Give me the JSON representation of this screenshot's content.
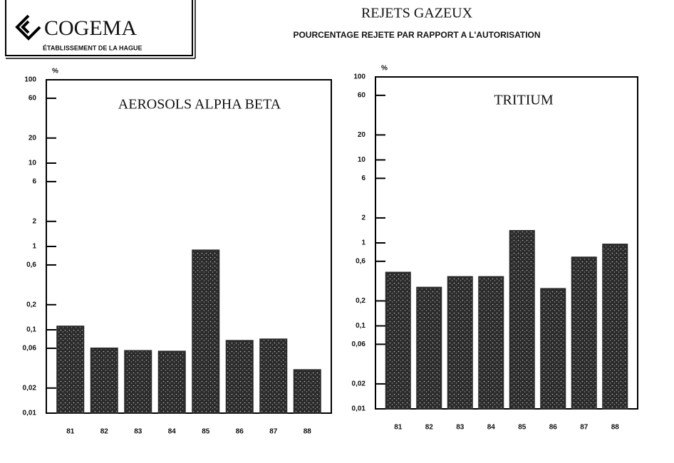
{
  "header": {
    "logo": "COGEMA",
    "establishment": "ÉTABLISSEMENT DE LA HAGUE",
    "title": "REJETS GAZEUX",
    "subtitle": "POURCENTAGE REJETE PAR RAPPORT A L'AUTORISATION"
  },
  "chart_data": [
    {
      "type": "bar",
      "title": "AEROSOLS ALPHA BETA",
      "y_label": "%",
      "log_scale": true,
      "color": "#2b2b2b",
      "categories": [
        "81",
        "82",
        "83",
        "84",
        "85",
        "86",
        "87",
        "88"
      ],
      "values": [
        0.11,
        0.06,
        0.056,
        0.055,
        0.9,
        0.074,
        0.077,
        0.033
      ],
      "ylim": [
        0.01,
        100
      ],
      "yticks": [
        100,
        60,
        20,
        10,
        6,
        2,
        1,
        {
          "value": 0.6,
          "label": "0,6"
        },
        {
          "value": 0.2,
          "label": "0,2"
        },
        {
          "value": 0.1,
          "label": "0,1"
        },
        {
          "value": 0.06,
          "label": "0,06"
        },
        {
          "value": 0.02,
          "label": "0,02"
        },
        {
          "value": 0.01,
          "label": "0,01"
        }
      ]
    },
    {
      "type": "bar",
      "title": "TRITIUM",
      "y_label": "%",
      "log_scale": true,
      "color": "#2b2b2b",
      "categories": [
        "81",
        "82",
        "83",
        "84",
        "85",
        "86",
        "87",
        "88"
      ],
      "values": [
        0.44,
        0.29,
        0.39,
        0.39,
        1.4,
        0.28,
        0.67,
        0.96
      ],
      "ylim": [
        0.01,
        100
      ],
      "yticks": [
        100,
        60,
        20,
        10,
        6,
        2,
        1,
        {
          "value": 0.6,
          "label": "0,6"
        },
        {
          "value": 0.2,
          "label": "0,2"
        },
        {
          "value": 0.1,
          "label": "0,1"
        },
        {
          "value": 0.06,
          "label": "0,06"
        },
        {
          "value": 0.02,
          "label": "0,02"
        },
        {
          "value": 0.01,
          "label": "0,01"
        }
      ]
    }
  ]
}
